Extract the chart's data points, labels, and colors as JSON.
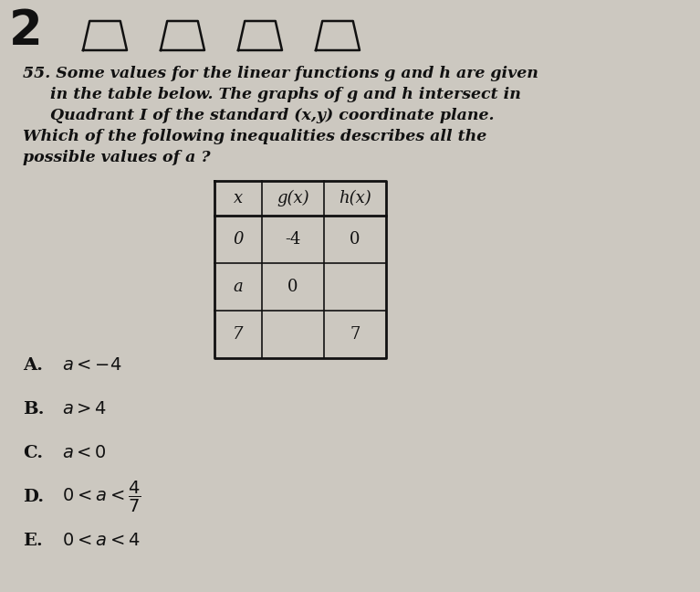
{
  "background_color": "#ccc8c0",
  "question_number": "55.",
  "question_text_lines": [
    "Some values for the linear functions g and h are given",
    "in the table below. The graphs of g and h intersect in",
    "Quadrant I of the standard (x,y) coordinate plane.",
    "Which of the following inequalities describes all the",
    "possible values of a ?"
  ],
  "table_headers": [
    "x",
    "g(x)",
    "h(x)"
  ],
  "table_rows": [
    [
      "0",
      "-4",
      "0"
    ],
    [
      "a",
      "0",
      ""
    ],
    [
      "7",
      "",
      "7"
    ]
  ],
  "choices": [
    {
      "label": "A.",
      "math": "a < -4"
    },
    {
      "label": "B.",
      "math": "a > 4"
    },
    {
      "label": "C.",
      "math": "a < 0"
    },
    {
      "label": "D.",
      "math": "0 < a < \\frac{4}{7}"
    },
    {
      "label": "E.",
      "math": "0 < a < 4"
    }
  ],
  "text_color": "#111111",
  "table_line_color": "#111111",
  "font_size_question": 12.5,
  "font_size_choices": 14,
  "font_size_table": 13
}
